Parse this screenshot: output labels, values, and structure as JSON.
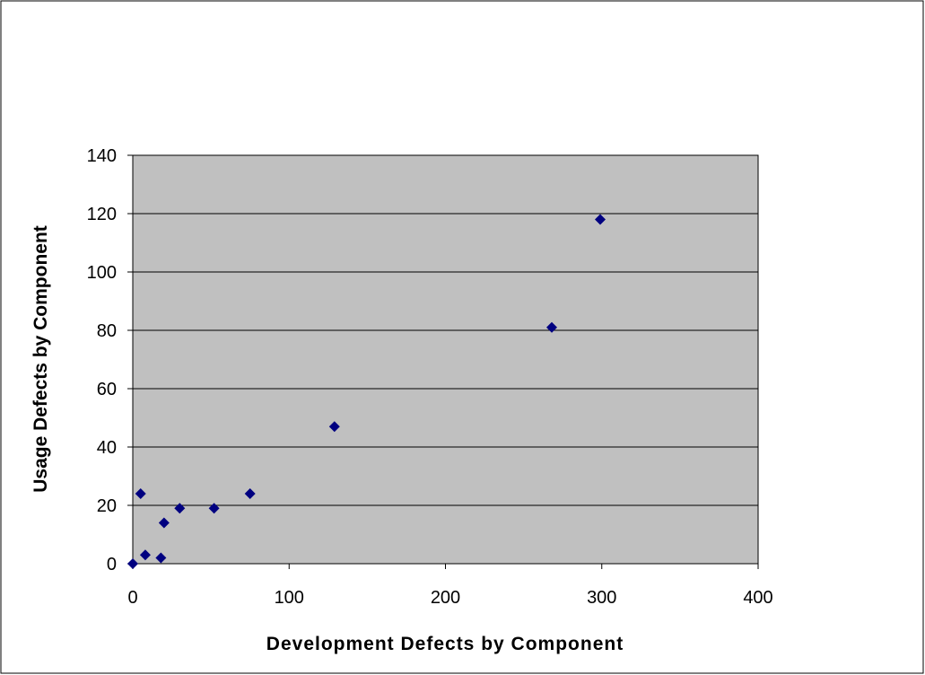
{
  "chart_data": {
    "type": "scatter",
    "x_label": "Development Defects by Component",
    "y_label": "Usage Defects by Component",
    "series": [
      {
        "color": "#000080",
        "x": [
          0,
          5,
          8,
          18,
          20,
          30,
          52,
          75,
          129,
          268,
          299
        ],
        "values": [
          0,
          24,
          3,
          2,
          14,
          19,
          19,
          24,
          47,
          81,
          118
        ]
      }
    ],
    "xlim": [
      0,
      400
    ],
    "xticks": [
      0,
      100,
      200,
      300,
      400
    ],
    "ylim": [
      0,
      140
    ],
    "yticks": [
      0,
      20,
      40,
      60,
      80,
      100,
      120,
      140
    ],
    "grid": true,
    "plot_background": "#c0c0c0"
  }
}
